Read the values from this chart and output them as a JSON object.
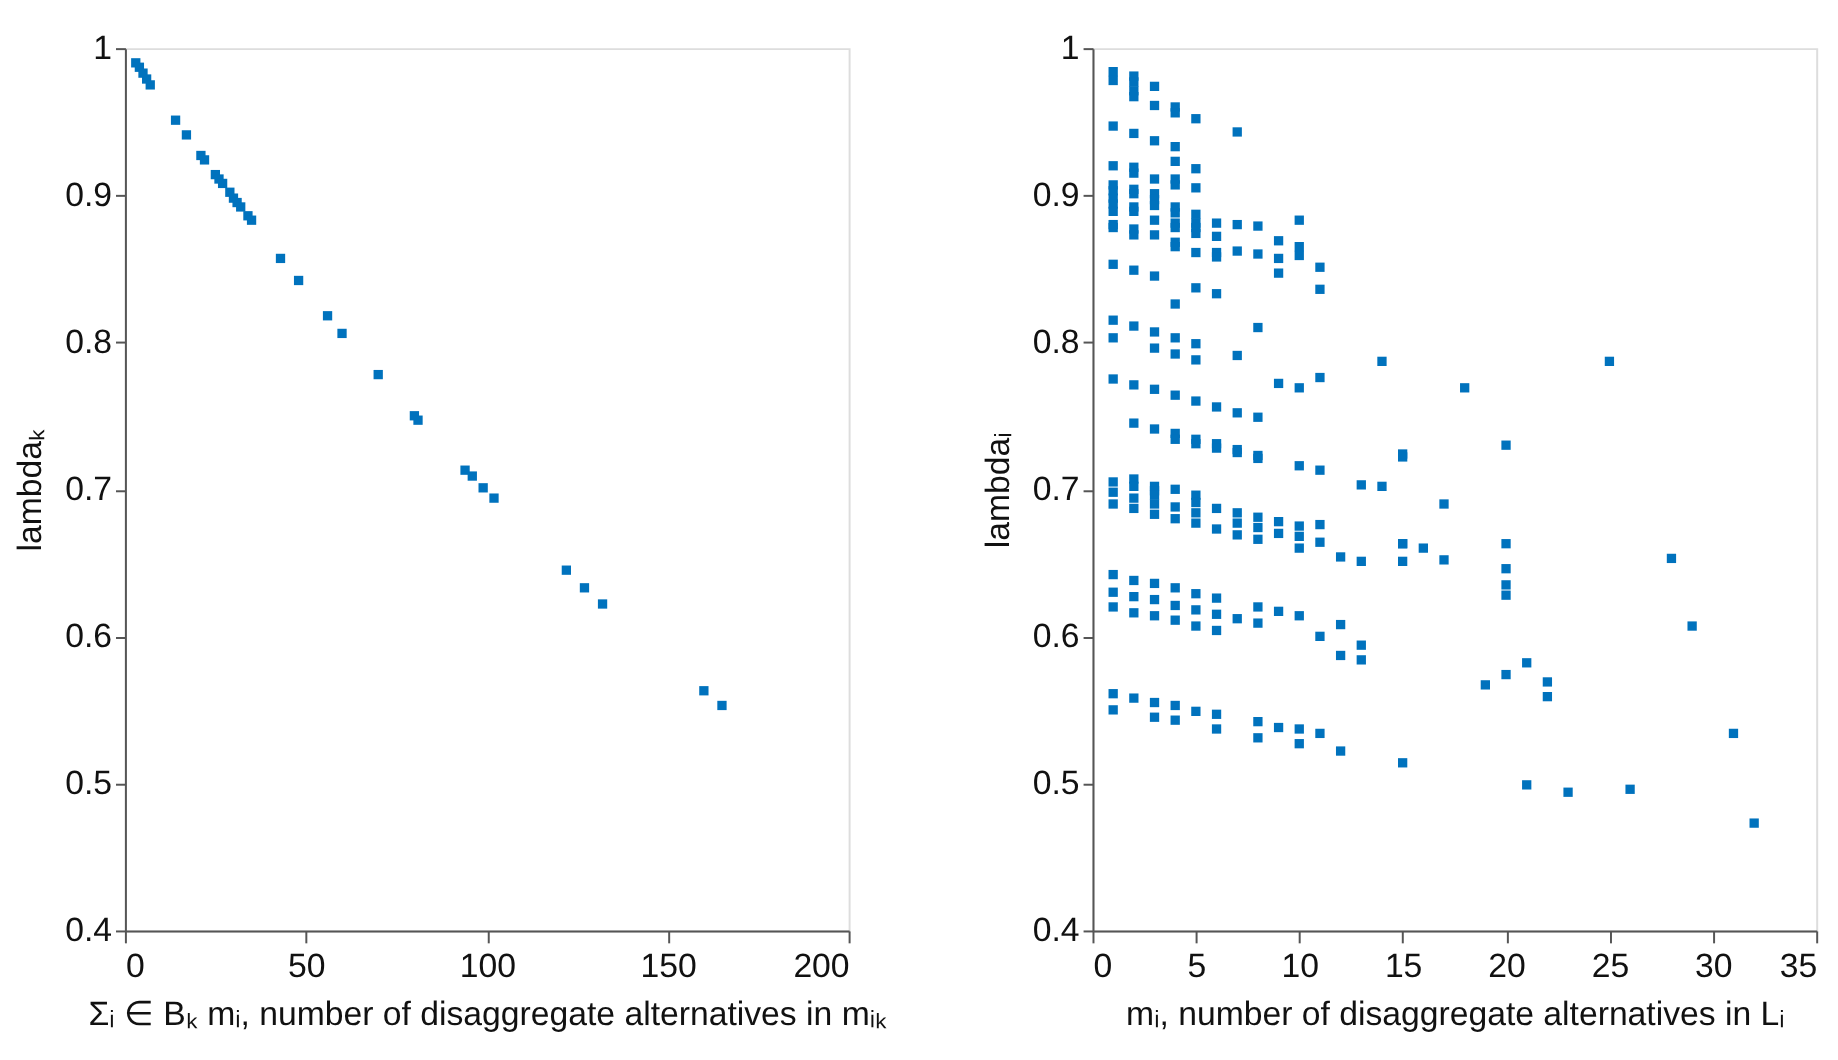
{
  "chart_data": [
    {
      "type": "scatter",
      "xlabel": "Σᵢ ∈ Bₖ mᵢ, number of disaggregate alternatives in mᵢₖ",
      "ylabel": "lambdaₖ",
      "marker": "square",
      "grid": false,
      "xlim": [
        0,
        200
      ],
      "xticks": [
        0,
        50,
        100,
        150,
        200
      ],
      "ylim": [
        0.4,
        1
      ],
      "yticks": [
        0.4,
        0.5,
        0.6,
        0.7,
        0.8,
        0.9,
        1
      ],
      "series": [
        {
          "color": "#0072bd",
          "x": [
            3,
            4,
            5,
            6,
            7,
            14,
            17,
            21,
            22,
            25,
            26,
            27,
            29,
            30,
            31,
            32,
            34,
            35,
            43,
            48,
            56,
            60,
            70,
            80,
            81,
            94,
            96,
            99,
            102,
            122,
            127,
            132,
            160,
            165
          ],
          "values": [
            0.99,
            0.987,
            0.983,
            0.979,
            0.975,
            0.951,
            0.941,
            0.927,
            0.924,
            0.914,
            0.911,
            0.908,
            0.902,
            0.898,
            0.895,
            0.892,
            0.886,
            0.883,
            0.857,
            0.842,
            0.818,
            0.806,
            0.778,
            0.75,
            0.747,
            0.713,
            0.709,
            0.701,
            0.694,
            0.645,
            0.633,
            0.622,
            0.563,
            0.553
          ]
        }
      ]
    },
    {
      "type": "scatter",
      "xlabel": "mᵢ, number of disaggregate alternatives in Lᵢ",
      "ylabel": "lambdaᵢ",
      "marker": "square",
      "grid": false,
      "xlim": [
        0,
        35
      ],
      "xticks": [
        0,
        5,
        10,
        15,
        20,
        25,
        30,
        35
      ],
      "ylim": [
        0.4,
        1
      ],
      "yticks": [
        0.4,
        0.5,
        0.6,
        0.7,
        0.8,
        0.9,
        1
      ],
      "series": [
        {
          "color": "#0072bd",
          "x": [
            1,
            1,
            1,
            1,
            1,
            1,
            1,
            1,
            1,
            1,
            1,
            1,
            1,
            1,
            1,
            1,
            1,
            1,
            1,
            1,
            1,
            1,
            1,
            2,
            2,
            2,
            2,
            2,
            2,
            2,
            2,
            2,
            2,
            2,
            2,
            2,
            2,
            2,
            2,
            2,
            2,
            2,
            2,
            2,
            2,
            2,
            2,
            2,
            3,
            3,
            3,
            3,
            3,
            3,
            3,
            3,
            3,
            3,
            3,
            3,
            3,
            3,
            3,
            3,
            3,
            3,
            3,
            3,
            3,
            3,
            3,
            3,
            4,
            4,
            4,
            4,
            4,
            4,
            4,
            4,
            4,
            4,
            4,
            4,
            4,
            4,
            4,
            4,
            4,
            4,
            4,
            4,
            4,
            4,
            4,
            4,
            4,
            4,
            5,
            5,
            5,
            5,
            5,
            5,
            5,
            5,
            5,
            5,
            5,
            5,
            5,
            5,
            5,
            5,
            5,
            5,
            5,
            5,
            5,
            5,
            6,
            6,
            6,
            6,
            6,
            6,
            6,
            6,
            6,
            6,
            6,
            6,
            6,
            6,
            6,
            7,
            7,
            7,
            7,
            7,
            7,
            7,
            7,
            7,
            7,
            7,
            8,
            8,
            8,
            8,
            8,
            8,
            8,
            8,
            8,
            8,
            8,
            8,
            8,
            9,
            9,
            9,
            9,
            9,
            9,
            9,
            9,
            10,
            10,
            10,
            10,
            10,
            10,
            10,
            10,
            10,
            10,
            10,
            11,
            11,
            11,
            11,
            11,
            11,
            11,
            11,
            12,
            12,
            12,
            12,
            13,
            13,
            13,
            13,
            14,
            14,
            15,
            15,
            15,
            15,
            15,
            15,
            16,
            17,
            17,
            18,
            19,
            20,
            20,
            20,
            20,
            20,
            20,
            21,
            21,
            22,
            22,
            23,
            25,
            26,
            28,
            29,
            31,
            32
          ],
          "values": [
            0.984,
            0.978,
            0.947,
            0.92,
            0.907,
            0.903,
            0.898,
            0.894,
            0.889,
            0.88,
            0.878,
            0.853,
            0.815,
            0.803,
            0.775,
            0.705,
            0.698,
            0.69,
            0.642,
            0.63,
            0.62,
            0.561,
            0.55,
            0.981,
            0.977,
            0.971,
            0.967,
            0.942,
            0.919,
            0.915,
            0.904,
            0.901,
            0.892,
            0.889,
            0.877,
            0.873,
            0.849,
            0.811,
            0.771,
            0.745,
            0.707,
            0.702,
            0.694,
            0.687,
            0.638,
            0.627,
            0.616,
            0.558,
            0.974,
            0.961,
            0.937,
            0.911,
            0.901,
            0.897,
            0.893,
            0.883,
            0.873,
            0.845,
            0.807,
            0.796,
            0.768,
            0.741,
            0.702,
            0.699,
            0.696,
            0.69,
            0.683,
            0.636,
            0.625,
            0.614,
            0.555,
            0.545,
            0.96,
            0.956,
            0.933,
            0.923,
            0.911,
            0.907,
            0.892,
            0.888,
            0.881,
            0.878,
            0.868,
            0.865,
            0.826,
            0.803,
            0.792,
            0.764,
            0.738,
            0.734,
            0.7,
            0.688,
            0.68,
            0.633,
            0.621,
            0.611,
            0.553,
            0.543,
            0.952,
            0.918,
            0.905,
            0.887,
            0.881,
            0.878,
            0.874,
            0.861,
            0.837,
            0.799,
            0.788,
            0.76,
            0.734,
            0.731,
            0.696,
            0.691,
            0.684,
            0.677,
            0.629,
            0.618,
            0.607,
            0.549,
            0.881,
            0.872,
            0.861,
            0.858,
            0.833,
            0.756,
            0.731,
            0.728,
            0.687,
            0.673,
            0.626,
            0.615,
            0.604,
            0.547,
            0.537,
            0.943,
            0.88,
            0.862,
            0.791,
            0.752,
            0.727,
            0.684,
            0.677,
            0.669,
            0.612,
            0.725,
            0.879,
            0.86,
            0.81,
            0.749,
            0.723,
            0.721,
            0.681,
            0.674,
            0.666,
            0.62,
            0.609,
            0.542,
            0.531,
            0.869,
            0.857,
            0.847,
            0.772,
            0.678,
            0.67,
            0.617,
            0.538,
            0.883,
            0.865,
            0.859,
            0.769,
            0.716,
            0.675,
            0.668,
            0.66,
            0.614,
            0.537,
            0.527,
            0.851,
            0.836,
            0.776,
            0.713,
            0.676,
            0.664,
            0.6,
            0.534,
            0.654,
            0.608,
            0.587,
            0.522,
            0.703,
            0.651,
            0.594,
            0.584,
            0.787,
            0.702,
            0.722,
            0.663,
            0.651,
            0.514,
            0.724,
            0.663,
            0.66,
            0.69,
            0.652,
            0.769,
            0.567,
            0.73,
            0.646,
            0.635,
            0.628,
            0.574,
            0.663,
            0.582,
            0.499,
            0.569,
            0.559,
            0.494,
            0.787,
            0.496,
            0.653,
            0.607,
            0.534,
            0.473
          ]
        }
      ]
    }
  ]
}
